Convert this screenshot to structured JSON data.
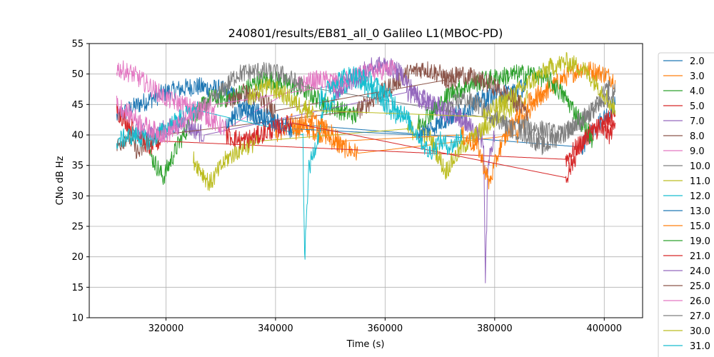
{
  "chart_data": {
    "type": "line",
    "title": "240801/results/EB81_all_0 Galileo L1(MBOC-PD)",
    "xlabel": "Time (s)",
    "ylabel": "CNo dB Hz",
    "xlim": [
      306000,
      407000
    ],
    "ylim": [
      10,
      55
    ],
    "xticks": [
      320000,
      340000,
      360000,
      380000,
      400000
    ],
    "yticks": [
      10,
      15,
      20,
      25,
      30,
      35,
      40,
      45,
      50,
      55
    ],
    "grid": true,
    "legend_position": "right, outside plot",
    "series": [
      {
        "name": "2.0",
        "color": "#1f77b4",
        "points": [
          [
            311000,
            43
          ],
          [
            315000,
            45
          ],
          [
            320000,
            47
          ],
          [
            325000,
            48
          ],
          [
            330000,
            47.5
          ],
          [
            333000,
            46
          ],
          [
            336000,
            44
          ],
          [
            340000,
            42
          ],
          [
            396000,
            38
          ],
          [
            398000,
            41
          ],
          [
            400000,
            43
          ],
          [
            402000,
            45
          ]
        ]
      },
      {
        "name": "3.0",
        "color": "#ff7f0e",
        "points": [
          [
            340000,
            40
          ],
          [
            343000,
            42
          ],
          [
            346000,
            41
          ],
          [
            349000,
            40
          ],
          [
            352000,
            38
          ],
          [
            355000,
            37
          ],
          [
            384000,
            40
          ],
          [
            388000,
            46
          ],
          [
            392000,
            49
          ],
          [
            396000,
            51
          ],
          [
            400000,
            50
          ],
          [
            402000,
            49
          ]
        ]
      },
      {
        "name": "4.0",
        "color": "#2ca02c",
        "points": [
          [
            317000,
            37
          ],
          [
            319500,
            33
          ],
          [
            322000,
            38
          ],
          [
            325000,
            43
          ],
          [
            328000,
            46
          ],
          [
            331000,
            46
          ],
          [
            334000,
            47
          ],
          [
            337000,
            49
          ],
          [
            340000,
            49
          ],
          [
            343000,
            48
          ],
          [
            346000,
            47
          ],
          [
            349000,
            45
          ],
          [
            352000,
            44
          ],
          [
            355000,
            43
          ]
        ]
      },
      {
        "name": "5.0",
        "color": "#d62728",
        "points": [
          [
            311000,
            44
          ],
          [
            313000,
            42
          ],
          [
            315000,
            40
          ],
          [
            317000,
            38
          ],
          [
            319000,
            39
          ],
          [
            393000,
            36
          ],
          [
            395000,
            38
          ],
          [
            397000,
            40
          ],
          [
            399000,
            41
          ],
          [
            401000,
            40
          ],
          [
            402000,
            42
          ]
        ]
      },
      {
        "name": "7.0",
        "color": "#9467bd",
        "points": [
          [
            314000,
            41
          ],
          [
            317000,
            40
          ],
          [
            320000,
            41
          ],
          [
            323000,
            42
          ],
          [
            327000,
            40
          ],
          [
            364000,
            47
          ],
          [
            367000,
            46
          ],
          [
            370000,
            44
          ],
          [
            373000,
            43
          ],
          [
            376000,
            41
          ],
          [
            378000,
            39
          ],
          [
            378300,
            15.5
          ],
          [
            378800,
            36
          ],
          [
            380000,
            40
          ]
        ]
      },
      {
        "name": "8.0",
        "color": "#8c564b",
        "points": [
          [
            311000,
            38
          ],
          [
            313000,
            40
          ],
          [
            315000,
            37
          ],
          [
            317000,
            39
          ],
          [
            319000,
            40
          ],
          [
            355000,
            44
          ],
          [
            358000,
            46
          ],
          [
            361000,
            48
          ],
          [
            364000,
            50
          ],
          [
            367000,
            51
          ],
          [
            370000,
            50
          ],
          [
            373000,
            48
          ]
        ]
      },
      {
        "name": "9.0",
        "color": "#e377c2",
        "points": [
          [
            311000,
            51
          ],
          [
            314000,
            50
          ],
          [
            317000,
            48
          ],
          [
            320000,
            46
          ],
          [
            323000,
            45
          ],
          [
            326000,
            44
          ],
          [
            329000,
            42
          ],
          [
            331000,
            41
          ],
          [
            344000,
            48
          ],
          [
            347000,
            49
          ],
          [
            350000,
            49
          ],
          [
            353000,
            48
          ]
        ]
      },
      {
        "name": "10.0",
        "color": "#7f7f7f",
        "points": [
          [
            325000,
            43
          ],
          [
            329000,
            46
          ],
          [
            333000,
            50
          ],
          [
            337000,
            50.5
          ],
          [
            341000,
            50
          ],
          [
            345000,
            48
          ],
          [
            384000,
            42
          ],
          [
            388000,
            41
          ],
          [
            392000,
            40
          ],
          [
            396000,
            42
          ],
          [
            399000,
            45
          ],
          [
            402000,
            47
          ]
        ]
      },
      {
        "name": "11.0",
        "color": "#bcbd22",
        "points": [
          [
            325000,
            36
          ],
          [
            328000,
            32
          ],
          [
            331000,
            36
          ],
          [
            334000,
            38
          ],
          [
            337000,
            39
          ],
          [
            364000,
            41
          ],
          [
            368000,
            40
          ],
          [
            371000,
            34
          ],
          [
            374000,
            38
          ],
          [
            378000,
            41
          ],
          [
            382000,
            44
          ],
          [
            386000,
            46
          ]
        ]
      },
      {
        "name": "12.0",
        "color": "#17becf",
        "points": [
          [
            311000,
            39
          ],
          [
            314000,
            40
          ],
          [
            317000,
            39
          ],
          [
            320000,
            41
          ],
          [
            323000,
            43
          ],
          [
            326000,
            44
          ],
          [
            345000,
            40
          ],
          [
            345300,
            19
          ],
          [
            346000,
            34
          ],
          [
            349000,
            44
          ],
          [
            352000,
            48
          ],
          [
            355000,
            49
          ],
          [
            358000,
            47
          ],
          [
            361000,
            44
          ],
          [
            364000,
            42
          ]
        ]
      },
      {
        "name": "13.0",
        "color": "#1f77b4",
        "points": [
          [
            331000,
            42
          ],
          [
            334000,
            44
          ],
          [
            337000,
            43
          ],
          [
            340000,
            42
          ],
          [
            343000,
            41
          ],
          [
            366000,
            40
          ],
          [
            370000,
            42
          ],
          [
            374000,
            44
          ],
          [
            378000,
            46
          ],
          [
            382000,
            47
          ],
          [
            386000,
            48
          ]
        ]
      },
      {
        "name": "15.0",
        "color": "#ff7f0e",
        "points": [
          [
            343000,
            40
          ],
          [
            346000,
            43
          ],
          [
            349000,
            41
          ],
          [
            352000,
            39
          ],
          [
            374000,
            40
          ],
          [
            377000,
            38
          ],
          [
            379000,
            32
          ],
          [
            381000,
            38
          ],
          [
            384000,
            43
          ],
          [
            387000,
            46
          ],
          [
            390000,
            48
          ]
        ]
      },
      {
        "name": "19.0",
        "color": "#2ca02c",
        "points": [
          [
            366000,
            42
          ],
          [
            369000,
            44
          ],
          [
            372000,
            47
          ],
          [
            375000,
            48
          ],
          [
            378000,
            49
          ],
          [
            381000,
            49.5
          ],
          [
            384000,
            50
          ],
          [
            387000,
            50
          ],
          [
            390000,
            49
          ],
          [
            393000,
            46
          ],
          [
            396000,
            42
          ],
          [
            398000,
            39
          ]
        ]
      },
      {
        "name": "21.0",
        "color": "#d62728",
        "points": [
          [
            331000,
            40
          ],
          [
            334000,
            39
          ],
          [
            337000,
            40
          ],
          [
            340000,
            41
          ],
          [
            343000,
            42
          ],
          [
            393000,
            33
          ],
          [
            395000,
            37
          ],
          [
            397000,
            40
          ],
          [
            400000,
            42
          ],
          [
            402000,
            43
          ]
        ]
      },
      {
        "name": "24.0",
        "color": "#9467bd",
        "points": [
          [
            351000,
            47
          ],
          [
            354000,
            49
          ],
          [
            357000,
            51
          ],
          [
            360000,
            51.5
          ],
          [
            363000,
            50
          ],
          [
            366000,
            46
          ],
          [
            369000,
            45
          ],
          [
            372000,
            44
          ],
          [
            375000,
            42
          ]
        ]
      },
      {
        "name": "25.0",
        "color": "#8c564b",
        "points": [
          [
            331000,
            45
          ],
          [
            334000,
            47
          ],
          [
            337000,
            46
          ],
          [
            340000,
            44
          ],
          [
            371000,
            49
          ],
          [
            374000,
            50
          ],
          [
            377000,
            49
          ],
          [
            380000,
            48
          ],
          [
            383000,
            46
          ],
          [
            386000,
            44
          ]
        ]
      },
      {
        "name": "26.0",
        "color": "#e377c2",
        "points": [
          [
            311000,
            45
          ],
          [
            314000,
            43
          ],
          [
            317000,
            41
          ],
          [
            320000,
            40
          ],
          [
            323000,
            42
          ],
          [
            326000,
            44
          ],
          [
            329000,
            45
          ],
          [
            350000,
            48
          ],
          [
            353000,
            49
          ],
          [
            356000,
            50
          ],
          [
            359000,
            50.5
          ],
          [
            362000,
            51
          ]
        ]
      },
      {
        "name": "27.0",
        "color": "#7f7f7f",
        "points": [
          [
            371000,
            44
          ],
          [
            374000,
            46
          ],
          [
            377000,
            45
          ],
          [
            380000,
            43
          ],
          [
            383000,
            41
          ],
          [
            386000,
            40
          ],
          [
            389000,
            38
          ],
          [
            392000,
            40
          ],
          [
            395000,
            42
          ],
          [
            398000,
            44
          ],
          [
            401000,
            48
          ]
        ]
      },
      {
        "name": "30.0",
        "color": "#bcbd22",
        "points": [
          [
            335000,
            46
          ],
          [
            338000,
            48
          ],
          [
            341000,
            47
          ],
          [
            344000,
            45
          ],
          [
            347000,
            44
          ],
          [
            378000,
            43
          ],
          [
            381000,
            45
          ],
          [
            384000,
            47
          ],
          [
            387000,
            49
          ],
          [
            390000,
            51
          ],
          [
            393000,
            52
          ],
          [
            396000,
            51
          ],
          [
            399000,
            48
          ],
          [
            402000,
            44
          ]
        ]
      },
      {
        "name": "31.0",
        "color": "#17becf",
        "points": [
          [
            348000,
            46
          ],
          [
            351000,
            49
          ],
          [
            354000,
            50
          ],
          [
            357000,
            49
          ],
          [
            360000,
            47
          ],
          [
            363000,
            44
          ],
          [
            366000,
            40
          ],
          [
            368000,
            37
          ],
          [
            370000,
            39
          ],
          [
            372000,
            38
          ],
          [
            374000,
            40
          ]
        ]
      }
    ]
  }
}
